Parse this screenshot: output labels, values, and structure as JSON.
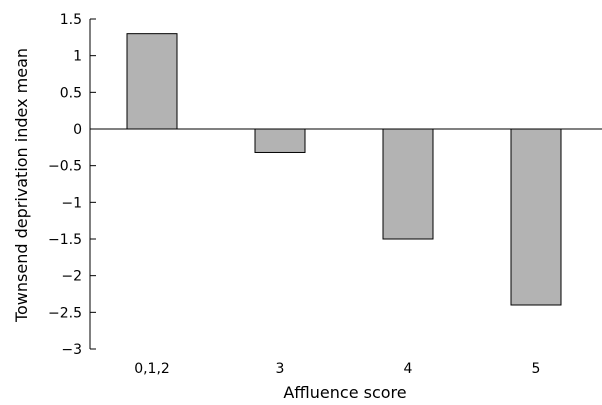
{
  "chart_data": {
    "type": "bar",
    "categories": [
      "0,1,2",
      "3",
      "4",
      "5"
    ],
    "values": [
      1.3,
      -0.32,
      -1.5,
      -2.4
    ],
    "xlabel": "Affluence score",
    "ylabel": "Townsend deprivation index mean",
    "ylim": [
      -3,
      1.5
    ],
    "yticks": [
      1.5,
      1,
      0.5,
      0,
      -0.5,
      -1,
      -1.5,
      -2,
      -2.5,
      -3
    ],
    "ytick_labels": [
      "1.5",
      "1",
      "0.5",
      "0",
      "−0.5",
      "−1",
      "−1.5",
      "−2",
      "−2.5",
      "−3"
    ],
    "grid": false,
    "legend": "none",
    "bar_color": "#b3b3b3"
  }
}
